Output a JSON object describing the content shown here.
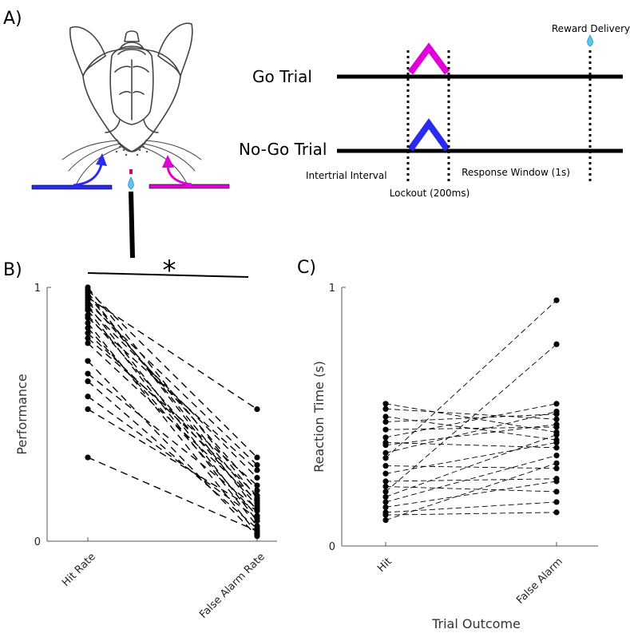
{
  "panels": {
    "a_label": "A)",
    "b_label": "B)",
    "c_label": "C)"
  },
  "timeline": {
    "go_label": "Go Trial",
    "nogo_label": "No-Go Trial",
    "reward_label": "Reward Delivery",
    "iti_label": "Intertrial Interval",
    "lockout_label": "Lockout (200ms)",
    "response_label": "Response Window (1s)",
    "go_color": "#e000d8",
    "nogo_color": "#2a2af0"
  },
  "significance": "*",
  "chart_data": [
    {
      "id": "performance",
      "type": "line",
      "title": "",
      "xlabel": "",
      "ylabel": "Performance",
      "categories": [
        "Hit Rate",
        "False Alarm Rate"
      ],
      "ylim": [
        0,
        1
      ],
      "yticks": [
        "0",
        "1"
      ],
      "line_style": "dashed",
      "series": [
        {
          "values": [
            1.0,
            0.17
          ]
        },
        {
          "values": [
            0.99,
            0.33
          ]
        },
        {
          "values": [
            0.98,
            0.12
          ]
        },
        {
          "values": [
            0.97,
            0.15
          ]
        },
        {
          "values": [
            0.96,
            0.52
          ]
        },
        {
          "values": [
            0.95,
            0.2
          ]
        },
        {
          "values": [
            0.94,
            0.3
          ]
        },
        {
          "values": [
            0.93,
            0.08
          ]
        },
        {
          "values": [
            0.92,
            0.25
          ]
        },
        {
          "values": [
            0.91,
            0.06
          ]
        },
        {
          "values": [
            0.89,
            0.14
          ]
        },
        {
          "values": [
            0.88,
            0.28
          ]
        },
        {
          "values": [
            0.86,
            0.03
          ]
        },
        {
          "values": [
            0.84,
            0.1
          ]
        },
        {
          "values": [
            0.82,
            0.18
          ]
        },
        {
          "values": [
            0.8,
            0.22
          ]
        },
        {
          "values": [
            0.78,
            0.16
          ]
        },
        {
          "values": [
            0.71,
            0.02
          ]
        },
        {
          "values": [
            0.66,
            0.13
          ]
        },
        {
          "values": [
            0.63,
            0.05
          ]
        },
        {
          "values": [
            0.57,
            0.09
          ]
        },
        {
          "values": [
            0.52,
            0.12
          ]
        },
        {
          "values": [
            0.33,
            0.04
          ]
        }
      ]
    },
    {
      "id": "reaction_time",
      "type": "line",
      "title": "",
      "xlabel": "Trial Outcome",
      "ylabel": "Reaction Time (s)",
      "categories": [
        "Hit",
        "False Alarm"
      ],
      "ylim": [
        0,
        1
      ],
      "yticks": [
        "0",
        "1"
      ],
      "line_style": "dashed",
      "series": [
        {
          "values": [
            0.55,
            0.44
          ]
        },
        {
          "values": [
            0.53,
            0.49
          ]
        },
        {
          "values": [
            0.5,
            0.41
          ]
        },
        {
          "values": [
            0.48,
            0.51
          ]
        },
        {
          "values": [
            0.45,
            0.46
          ]
        },
        {
          "values": [
            0.42,
            0.55
          ]
        },
        {
          "values": [
            0.4,
            0.38
          ]
        },
        {
          "values": [
            0.39,
            0.47
          ]
        },
        {
          "values": [
            0.36,
            0.52
          ]
        },
        {
          "values": [
            0.34,
            0.95
          ]
        },
        {
          "values": [
            0.31,
            0.3
          ]
        },
        {
          "values": [
            0.28,
            0.4
          ]
        },
        {
          "values": [
            0.25,
            0.26
          ]
        },
        {
          "values": [
            0.23,
            0.21
          ]
        },
        {
          "values": [
            0.21,
            0.78
          ]
        },
        {
          "values": [
            0.19,
            0.43
          ]
        },
        {
          "values": [
            0.17,
            0.35
          ]
        },
        {
          "values": [
            0.15,
            0.25
          ]
        },
        {
          "values": [
            0.13,
            0.17
          ]
        },
        {
          "values": [
            0.12,
            0.13
          ]
        },
        {
          "values": [
            0.1,
            0.32
          ]
        }
      ]
    }
  ]
}
